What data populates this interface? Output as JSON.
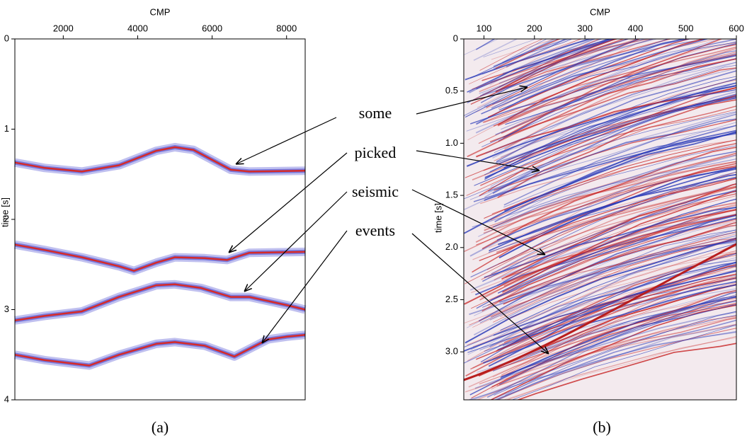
{
  "chart_data": [
    {
      "type": "line",
      "caption": "(a)",
      "xlabel": "CMP",
      "ylabel": "time [s]",
      "xlim": [
        700,
        8500
      ],
      "ylim": [
        0,
        4
      ],
      "xticks": [
        2000,
        4000,
        6000,
        8000
      ],
      "yticks": [
        0,
        1,
        2,
        3,
        4
      ],
      "halo_color": "#4a4ad0",
      "series": [
        {
          "color": "#d42a2a",
          "x": [
            700,
            1500,
            2500,
            3500,
            4500,
            5000,
            5500,
            6000,
            6500,
            7000,
            8500
          ],
          "values": [
            1.37,
            1.43,
            1.47,
            1.4,
            1.24,
            1.2,
            1.23,
            1.34,
            1.45,
            1.47,
            1.46
          ]
        },
        {
          "color": "#d42a2a",
          "x": [
            700,
            1500,
            2500,
            3500,
            3900,
            4500,
            5000,
            5800,
            6400,
            7000,
            8500
          ],
          "values": [
            2.28,
            2.34,
            2.42,
            2.52,
            2.57,
            2.48,
            2.42,
            2.43,
            2.45,
            2.37,
            2.36
          ]
        },
        {
          "color": "#d42a2a",
          "x": [
            700,
            1500,
            2500,
            3500,
            4500,
            5000,
            5700,
            6500,
            7000,
            8000,
            8500
          ],
          "values": [
            3.12,
            3.07,
            3.02,
            2.86,
            2.73,
            2.72,
            2.76,
            2.86,
            2.86,
            2.95,
            3.0
          ]
        },
        {
          "color": "#d42a2a",
          "x": [
            700,
            1500,
            2700,
            3500,
            4500,
            5000,
            5800,
            6600,
            7500,
            8000,
            8500
          ],
          "values": [
            3.5,
            3.56,
            3.62,
            3.5,
            3.38,
            3.36,
            3.4,
            3.52,
            3.33,
            3.3,
            3.28
          ]
        }
      ]
    },
    {
      "type": "image",
      "caption": "(b)",
      "xlabel": "CMP",
      "ylabel": "time [s]",
      "xlim": [
        60,
        600
      ],
      "ylim": [
        0,
        3.46
      ],
      "xticks": [
        100,
        200,
        300,
        400,
        500,
        600
      ],
      "yticks": [
        0,
        0.5,
        {
          "value": 1,
          "label": "1.0"
        },
        1.5,
        {
          "value": 2,
          "label": "2.0"
        },
        2.5,
        {
          "value": 3,
          "label": "3.0"
        }
      ]
    }
  ],
  "annotations": [
    "some",
    "picked",
    "seismic",
    "events"
  ]
}
